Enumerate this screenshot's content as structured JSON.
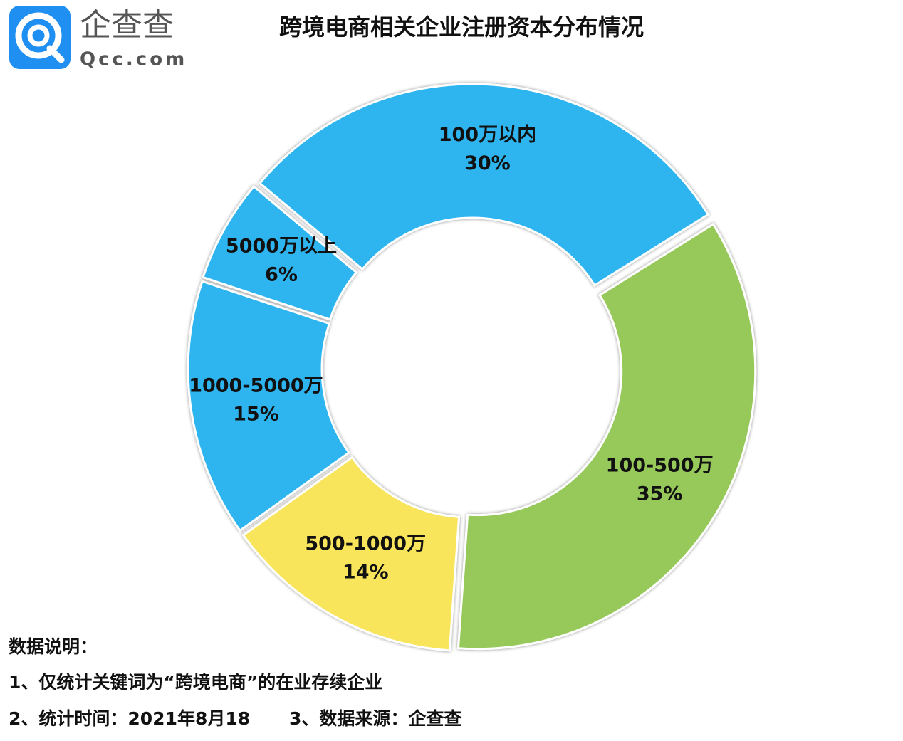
{
  "chart_data": {
    "type": "donut",
    "title": "跨境电商相关企业注册资本分布情况",
    "logo": {
      "name": "企查查",
      "domain": "Qcc.com"
    },
    "categories": [
      "100万以内",
      "100-500万",
      "500-1000万",
      "1000-5000万",
      "5000万以上"
    ],
    "values": [
      30,
      35,
      14,
      15,
      6
    ],
    "value_labels": [
      "30%",
      "35%",
      "14%",
      "15%",
      "6%"
    ],
    "colors": [
      "#2db5f0",
      "#96c85a",
      "#f8e55c",
      "#2db5f0",
      "#2db5f0"
    ],
    "notes": [
      "数据说明：",
      "1、仅统计关键词为“跨境电商”的在业存续企业",
      "2、统计时间：2021年8月18",
      "3、数据来源：企查查"
    ]
  }
}
